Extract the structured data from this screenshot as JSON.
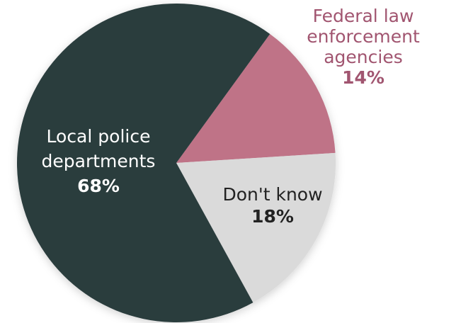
{
  "chart_data": {
    "type": "pie",
    "slices": [
      {
        "label_lines": [
          "Federal law",
          "enforcement",
          "agencies"
        ],
        "value": 14,
        "value_label": "14%",
        "color": "#bf7387",
        "text_color": "#a15570"
      },
      {
        "label_lines": [
          "Don't know"
        ],
        "value": 18,
        "value_label": "18%",
        "color": "#dadada",
        "text_color": "#222222"
      },
      {
        "label_lines": [
          "Local police",
          "departments"
        ],
        "value": 68,
        "value_label": "68%",
        "color": "#2b3c3e",
        "text_color": "#ffffff"
      }
    ]
  }
}
